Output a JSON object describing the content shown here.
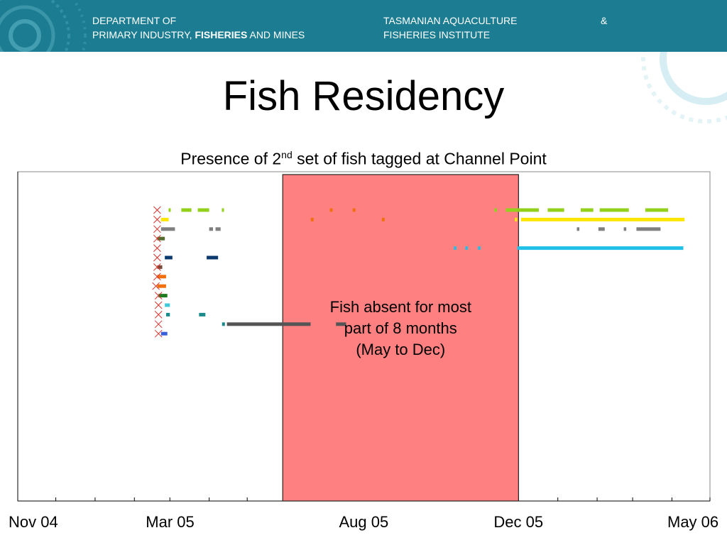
{
  "header": {
    "left_line1": "DEPARTMENT OF",
    "left_line2_a": "PRIMARY INDUSTRY, ",
    "left_line2_b": "FISHERIES",
    "left_line2_c": " AND MINES",
    "right_line1": "TASMANIAN AQUACULTURE",
    "amp": "&",
    "right_line2": "FISHERIES INSTITUTE",
    "background_color": "#1c7d92"
  },
  "slide": {
    "title": "Fish Residency",
    "subtitle_pre": "Presence of 2",
    "subtitle_sup": "nd",
    "subtitle_post": " set of fish tagged at Channel Point"
  },
  "chart_data": {
    "type": "scatter",
    "title": "",
    "xlabel": "",
    "ylabel": "",
    "x_axis": "date",
    "xlim": [
      "2004-11-01",
      "2006-05-01"
    ],
    "x_tick_labels": [
      {
        "label": "Nov 04",
        "date": "2004-11-01"
      },
      {
        "label": "Mar 05",
        "date": "2005-03-01"
      },
      {
        "label": "Aug 05",
        "date": "2005-08-01"
      },
      {
        "label": "Dec 05",
        "date": "2005-12-01"
      },
      {
        "label": "May 06",
        "date": "2006-05-01"
      }
    ],
    "minor_ticks": "monthly",
    "grid": false,
    "legend": "none",
    "tag_marker": "red-cross",
    "tag_marker_color": "#d9302b",
    "fish": [
      {
        "row": 1,
        "color": "#92d01c",
        "tagged": "2005-02-19",
        "detections": [
          [
            "2005-02-28",
            "2005-03-01"
          ],
          [
            "2005-03-10",
            "2005-03-18"
          ],
          [
            "2005-03-23",
            "2005-04-01"
          ],
          [
            "2005-04-11",
            "2005-04-12"
          ],
          [
            "2005-11-12",
            "2005-11-14"
          ],
          [
            "2005-11-21",
            "2005-12-17"
          ],
          [
            "2005-12-24",
            "2006-01-06"
          ],
          [
            "2006-01-19",
            "2006-01-29"
          ],
          [
            "2006-02-03",
            "2006-02-26"
          ],
          [
            "2006-03-11",
            "2006-03-29"
          ]
        ]
      },
      {
        "row": 2,
        "color": "#ffe600",
        "tagged": "2005-02-19",
        "detections": [
          [
            "2005-02-22",
            "2005-02-28"
          ],
          [
            "2005-11-28",
            "2005-11-30"
          ],
          [
            "2005-12-03",
            "2006-04-11"
          ]
        ]
      },
      {
        "row": 3,
        "color": "#808080",
        "tagged": "2005-02-19",
        "detections": [
          [
            "2005-02-22",
            "2005-03-05"
          ],
          [
            "2005-04-01",
            "2005-04-04"
          ],
          [
            "2005-04-06",
            "2005-04-10"
          ],
          [
            "2006-01-16",
            "2006-01-18"
          ],
          [
            "2006-02-02",
            "2006-02-07"
          ],
          [
            "2006-02-22",
            "2006-02-24"
          ],
          [
            "2006-03-04",
            "2006-03-23"
          ]
        ]
      },
      {
        "row": 4,
        "color": "#556b2f",
        "tagged": "2005-02-19",
        "detections": [
          [
            "2005-02-19",
            "2005-02-25"
          ]
        ]
      },
      {
        "row": 5,
        "color": "#20c0e8",
        "tagged": "2005-02-19",
        "detections": [
          [
            "2005-10-11",
            "2005-10-13"
          ],
          [
            "2005-10-20",
            "2005-10-22"
          ],
          [
            "2005-10-30",
            "2005-11-01"
          ],
          [
            "2005-11-30",
            "2006-04-10"
          ]
        ]
      },
      {
        "row": 6,
        "color": "#0c3a6e",
        "tagged": "2005-02-19",
        "detections": [
          [
            "2005-02-25",
            "2005-03-03"
          ],
          [
            "2005-03-30",
            "2005-04-08"
          ]
        ]
      },
      {
        "row": 7,
        "color": "#7b4a3a",
        "tagged": "2005-02-19",
        "detections": [
          [
            "2005-02-19",
            "2005-02-23"
          ]
        ]
      },
      {
        "row": 8,
        "color": "#f07010",
        "tagged": "2005-02-19",
        "detections": [
          [
            "2005-02-19",
            "2005-02-26"
          ]
        ]
      },
      {
        "row": 9,
        "color": "#f07010",
        "tagged": "2005-02-18",
        "detections": [
          [
            "2005-02-19",
            "2005-02-26"
          ]
        ]
      },
      {
        "row": 10,
        "color": "#1e7a1e",
        "tagged": "2005-02-20",
        "detections": [
          [
            "2005-02-20",
            "2005-02-27"
          ]
        ]
      },
      {
        "row": 11,
        "color": "#40c8d8",
        "tagged": "2005-02-20",
        "detections": [
          [
            "2005-02-25",
            "2005-03-01"
          ]
        ]
      },
      {
        "row": 12,
        "color": "#1a8a8a",
        "tagged": "2005-02-20",
        "detections": [
          [
            "2005-02-26",
            "2005-03-01"
          ],
          [
            "2005-03-24",
            "2005-03-29"
          ]
        ]
      },
      {
        "row": 13,
        "color": "#555555",
        "tagged": "2005-02-20",
        "detections": [
          [
            "2005-04-15",
            "2005-06-20"
          ],
          [
            "2005-07-10",
            "2005-07-18"
          ]
        ]
      },
      {
        "row": 14,
        "color": "#3a5fd8",
        "tagged": "2005-02-20",
        "detections": [
          [
            "2005-02-22",
            "2005-02-27"
          ]
        ]
      }
    ],
    "extra_points": [
      {
        "row": 1,
        "color": "#f07010",
        "dates": [
          "2005-07-06",
          "2005-07-24"
        ]
      },
      {
        "row": 2,
        "color": "#f07010",
        "dates": [
          "2005-06-21",
          "2005-08-16"
        ]
      },
      {
        "row": 13,
        "color": "#1a8a8a",
        "dates": [
          "2005-04-12"
        ]
      }
    ],
    "absence_band": {
      "start": "2005-05-29",
      "end": "2005-12-01",
      "color": "#ff8080"
    },
    "annotation": {
      "line1": "Fish absent for most",
      "line2": "part of 8 months",
      "line3": "(May to Dec)"
    }
  }
}
